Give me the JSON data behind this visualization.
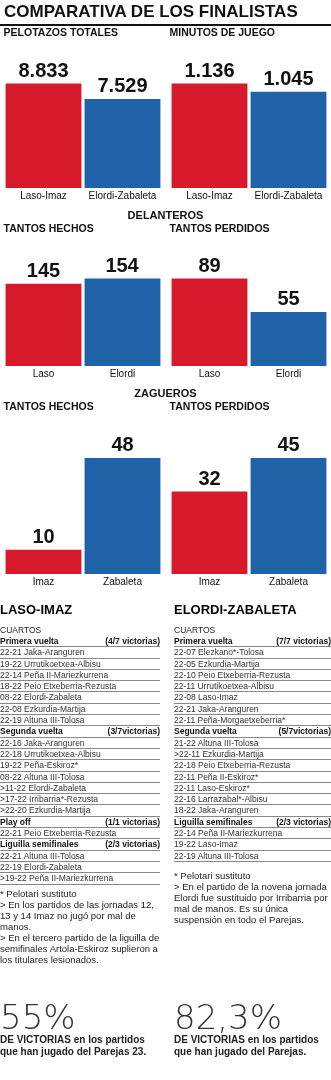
{
  "chart_data": [
    {
      "type": "other",
      "title": "COMPARATIVA DE LOS FINALISTAS"
    },
    {
      "type": "bar",
      "title": "PELOTAZOS TOTALES",
      "categories": [
        "Laso-Imaz",
        "Elordi-Zabaleta"
      ],
      "values": [
        8833,
        7529
      ],
      "value_labels": [
        "8.833",
        "7.529"
      ],
      "colors": [
        "#d7192c",
        "#1f62a8"
      ]
    },
    {
      "type": "bar",
      "title": "MINUTOS DE JUEGO",
      "categories": [
        "Laso-Imaz",
        "Elordi-Zabaleta"
      ],
      "values": [
        1136,
        1045
      ],
      "value_labels": [
        "1.136",
        "1.045"
      ],
      "colors": [
        "#d7192c",
        "#1f62a8"
      ]
    },
    {
      "type": "other",
      "title": "DELANTEROS"
    },
    {
      "type": "bar",
      "title": "TANTOS HECHOS",
      "categories": [
        "Laso",
        "Elordi"
      ],
      "values": [
        145,
        154
      ],
      "data_labels": true,
      "colors": [
        "#d7192c",
        "#1f62a8"
      ]
    },
    {
      "type": "bar",
      "title": "TANTOS PERDIDOS",
      "categories": [
        "Laso",
        "Elordi"
      ],
      "values": [
        89,
        55
      ],
      "data_labels": true,
      "colors": [
        "#d7192c",
        "#1f62a8"
      ]
    },
    {
      "type": "other",
      "title": "ZAGUEROS"
    },
    {
      "type": "bar",
      "title": "TANTOS HECHOS",
      "categories": [
        "Imaz",
        "Zabaleta"
      ],
      "values": [
        10,
        48
      ],
      "data_labels": true,
      "colors": [
        "#d7192c",
        "#1f62a8"
      ]
    },
    {
      "type": "bar",
      "title": "TANTOS PERDIDOS",
      "categories": [
        "Imaz",
        "Zabaleta"
      ],
      "values": [
        32,
        45
      ],
      "data_labels": true,
      "colors": [
        "#d7192c",
        "#1f62a8"
      ]
    },
    {
      "type": "other",
      "title": "LASO-IMAZ",
      "subtitle": "CUARTOS",
      "annotations": [
        "Primera vuelta (4/7 victorias)",
        "22-21 Jaka-Aranguren",
        "19-22 Urrutikoetxea-Albisu",
        "22-14 Peña II-Mariezkurrena",
        "18-22 Peio Etxeberria-Rezusta",
        "08-22 Elordi-Zabaleta",
        "22-08 Ezkurdia-Martija",
        "22-19 Altuna III-Tolosa",
        "Segunda vuelta (3/7victorias)",
        "22-16 Jaka-Aranguren",
        "22-18 Urrutikoetxea-Albisu",
        "19-22 Peña-Eskiroz*",
        "08-22 Altuna III-Tolosa",
        ">11-22 Elordi-Zabaleta",
        ">17-22 Irribarria*-Rezusta",
        ">22-20 Ezkurdia-Martija",
        "Play off (1/1 victorias)",
        "22-21 Peio Etxeberria-Rezusta",
        "Liguilla semifinales (2/3 victorias)",
        "22-21 Altuna III-Tolosa",
        "22-19 Elordi-Zabaleta",
        ">19-22 Peña II-Mariezkurrena"
      ]
    },
    {
      "type": "other",
      "title": "ELORDI-ZABALETA",
      "subtitle": "CUARTOS",
      "annotations": [
        "Primera vuelta (7/7 victorias)",
        "22-07 Elezkano*-Tolosa",
        "22-05 Ezkurdia-Martija",
        "22-10 Peio Etxeberria-Rezusta",
        "22-11 Urrutikoetxea-Albisu",
        "22-08 Laso-Imaz",
        "22-21 Jaka-Aranguren",
        "22-11 Peña-Morgaetxeberria*",
        "Segunda vuelta (5/7victorias)",
        "21-22 Altuna III-Tolosa",
        ">22-11 Ezkurdia-Martija",
        "22-18 Peio Etxeberria-Rezusta",
        "22-11 Peña II-Eskiroz*",
        "22-11 Laso-Eskiroz*",
        "22-16 Larrazabal*-Albisu",
        "18-22 Jaka-Aranguren",
        "Liguilla semifinales (2/3 victorias)",
        "22-14 Peña II-Mariezkurrena",
        "19-22 Laso-Imaz",
        "22-19 Altuna III-Tolosa"
      ]
    },
    {
      "type": "other",
      "annotations": [
        "* Pelotari sustituto",
        "> En los partidos de las jornadas 12, 13 y 14 Imaz no jugó por mal de manos.",
        "> En el tercero partido de la liguilla de semifinales Artola-Eskiroz suplieron a los titulares lesionados."
      ]
    },
    {
      "type": "other",
      "annotations": [
        "* Pelotari sustituto",
        "> En el partido de la novena jornada Elordi fue sustituido por Irribarria por mal de manos. Es su única suspensión en todo el Parejas."
      ]
    },
    {
      "type": "other",
      "title": "55%",
      "subtitle": "DE VICTORIAS en los partidos que han jugado del Parejas 23."
    },
    {
      "type": "other",
      "title": "82,3%",
      "subtitle": "DE VICTORIAS en los partidos que han jugado del Parejas."
    }
  ]
}
